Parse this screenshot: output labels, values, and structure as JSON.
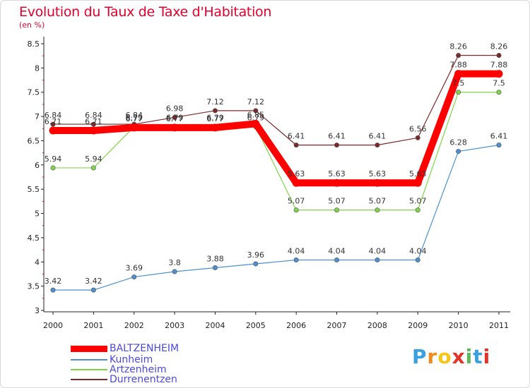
{
  "title": "Evolution du Taux de Taxe d'Habitation",
  "subtitle": "(en %)",
  "logo": {
    "letters": [
      "P",
      "r",
      "o",
      "x",
      "i",
      "t",
      "i"
    ],
    "colors": [
      "#3aa0e0",
      "#f08a1c",
      "#f5c518",
      "#e4342a",
      "#5cb85c",
      "#3aa0e0",
      "#e4342a"
    ]
  },
  "chart_data": {
    "type": "line",
    "title": "Evolution du Taux de Taxe d'Habitation",
    "ylabel": "(en %)",
    "xlabel": "",
    "ylim": [
      3,
      8.5
    ],
    "grid": false,
    "legend": "bottom-left",
    "yticks": [
      "3",
      "3.5",
      "4",
      "4.5",
      "5",
      "5.5",
      "6",
      "6.5",
      "7",
      "7.5",
      "8",
      "8.5"
    ],
    "categories": [
      "2000",
      "2001",
      "2002",
      "2003",
      "2004",
      "2005",
      "2006",
      "2007",
      "2008",
      "2009",
      "2010",
      "2011"
    ],
    "series": [
      {
        "name": "BALTZENHEIM",
        "color": "#ff0000",
        "values": [
          6.71,
          6.71,
          6.77,
          6.77,
          6.77,
          6.85,
          5.63,
          5.63,
          5.63,
          5.63,
          7.88,
          7.88
        ],
        "labels": [
          "6.71",
          "6.71",
          "6.77",
          "6.77",
          "6.77",
          "6.85",
          "5.63",
          "5.63",
          "5.63",
          "5.63",
          "7.88",
          "7.88"
        ]
      },
      {
        "name": "Kunheim",
        "color": "#4d8fd1",
        "values": [
          3.42,
          3.42,
          3.69,
          3.8,
          3.88,
          3.96,
          4.04,
          4.04,
          4.04,
          4.04,
          6.28,
          6.41
        ],
        "labels": [
          "3.42",
          "3.42",
          "3.69",
          "3.8",
          "3.88",
          "3.96",
          "4.04",
          "4.04",
          "4.04",
          "4.04",
          "6.28",
          "6.41"
        ]
      },
      {
        "name": "Artzenheim",
        "color": "#80d44a",
        "values": [
          5.94,
          5.94,
          6.79,
          6.79,
          6.79,
          6.79,
          5.07,
          5.07,
          5.07,
          5.07,
          7.5,
          7.5
        ],
        "labels": [
          "5.94",
          "5.94",
          "6.79",
          "6.79",
          "6.79",
          "6.79",
          "5.07",
          "5.07",
          "5.07",
          "5.07",
          "7.5",
          "7.5"
        ]
      },
      {
        "name": "Durrenentzen",
        "color": "#7a2a2a",
        "values": [
          6.84,
          6.84,
          6.84,
          6.98,
          7.12,
          7.12,
          6.41,
          6.41,
          6.41,
          6.56,
          8.26,
          8.26
        ],
        "labels": [
          "6.84",
          "6.84",
          "6.84",
          "6.98",
          "7.12",
          "7.12",
          "6.41",
          "6.41",
          "6.41",
          "6.56",
          "8.26",
          "8.26"
        ]
      }
    ]
  }
}
